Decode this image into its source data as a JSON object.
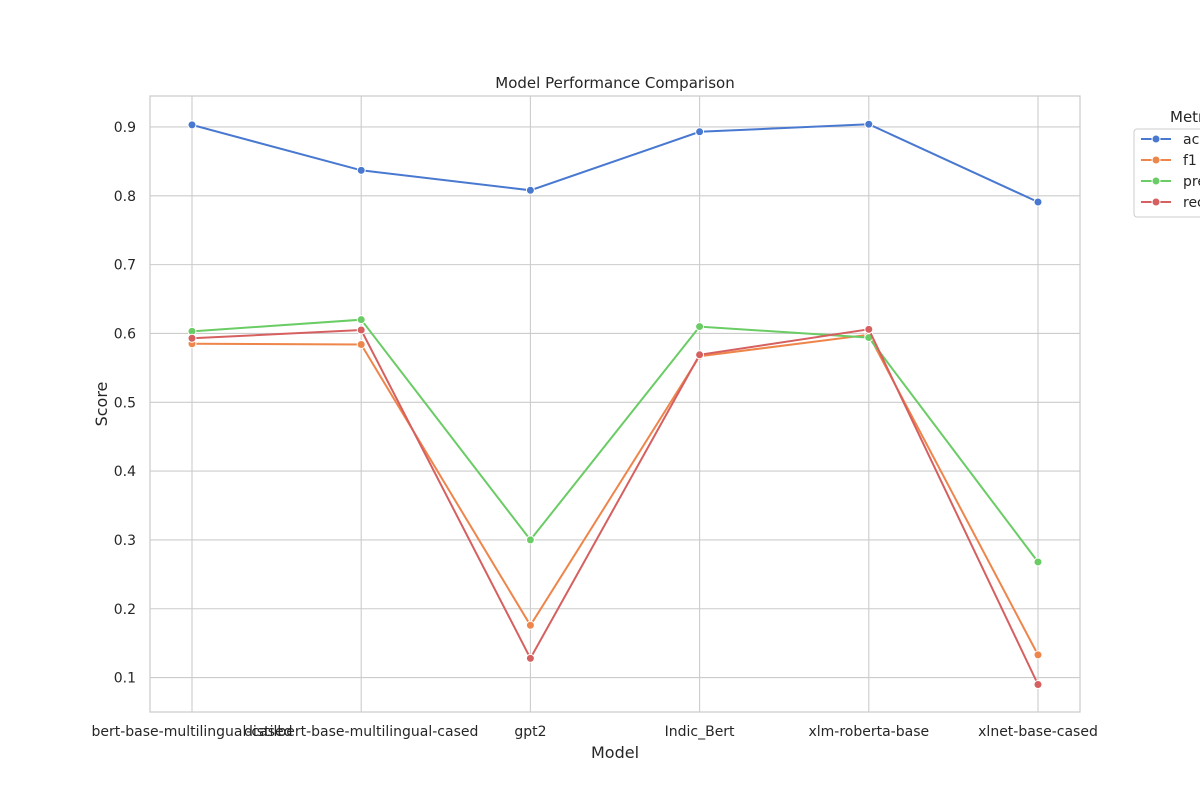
{
  "chart_data": {
    "type": "line",
    "title": "Model Performance Comparison",
    "xlabel": "Model",
    "ylabel": "Score",
    "categories": [
      "bert-base-multilingual-cased",
      "distilbert-base-multilingual-cased",
      "gpt2",
      "Indic_Bert",
      "xlm-roberta-base",
      "xlnet-base-cased"
    ],
    "ylim": [
      0.05,
      0.945
    ],
    "yticks": [
      "0.1",
      "0.2",
      "0.3",
      "0.4",
      "0.5",
      "0.6",
      "0.7",
      "0.8",
      "0.9"
    ],
    "grid": true,
    "legend": {
      "title": "Metric",
      "placement": "outside-top-right"
    },
    "series": [
      {
        "name": "accuracy",
        "color": "#4878d0",
        "values": [
          0.903,
          0.837,
          0.808,
          0.893,
          0.904,
          0.791
        ]
      },
      {
        "name": "f1",
        "color": "#ee854a",
        "values": [
          0.585,
          0.584,
          0.176,
          0.567,
          0.598,
          0.133
        ]
      },
      {
        "name": "precision",
        "color": "#6acc64",
        "values": [
          0.603,
          0.62,
          0.3,
          0.61,
          0.594,
          0.268
        ]
      },
      {
        "name": "recall",
        "color": "#d65f5f",
        "values": [
          0.593,
          0.605,
          0.128,
          0.569,
          0.606,
          0.09
        ]
      }
    ]
  }
}
